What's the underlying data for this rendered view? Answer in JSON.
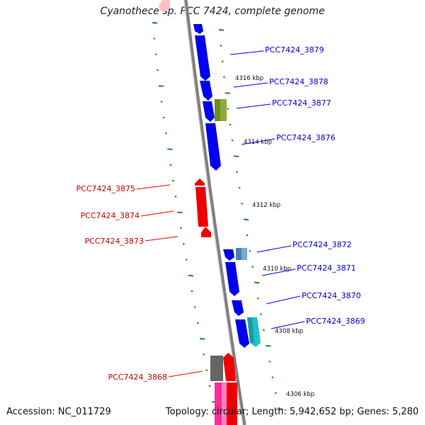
{
  "title": "Cyanothece sp. PCC 7424, complete genome",
  "footer": {
    "accession": "Accession: NC_011729",
    "topology": "Topology: circular; Length: 5,942,652 bp; Genes: 5,280"
  },
  "colors": {
    "backbone": "#7f7f7f",
    "tick": "#1e8c1e",
    "forward_gene": "#0000ee",
    "reverse_gene": "#ee0000",
    "olive_gene": "#6b8e23",
    "steelblue_gene": "#4a7fb0",
    "cyan_gene": "#22c0c8",
    "gray_gene": "#666666",
    "pink_gene": "#ff2a9c",
    "faint_pink_gene": "#ffc0c0"
  },
  "kbp_labels": [
    "4316 kbp",
    "4314 kbp",
    "4312 kbp",
    "4310 kbp",
    "4308 kbp",
    "4306 kbp"
  ],
  "genes_forward": [
    {
      "label": "PCC7424_3879"
    },
    {
      "label": "PCC7424_3878"
    },
    {
      "label": "PCC7424_3877"
    },
    {
      "label": "PCC7424_3876"
    },
    {
      "label": "PCC7424_3872"
    },
    {
      "label": "PCC7424_3871"
    },
    {
      "label": "PCC7424_3870"
    },
    {
      "label": "PCC7424_3869"
    }
  ],
  "genes_reverse": [
    {
      "label": "PCC7424_3875"
    },
    {
      "label": "PCC7424_3874"
    },
    {
      "label": "PCC7424_3873"
    },
    {
      "label": "PCC7424_3868"
    }
  ]
}
